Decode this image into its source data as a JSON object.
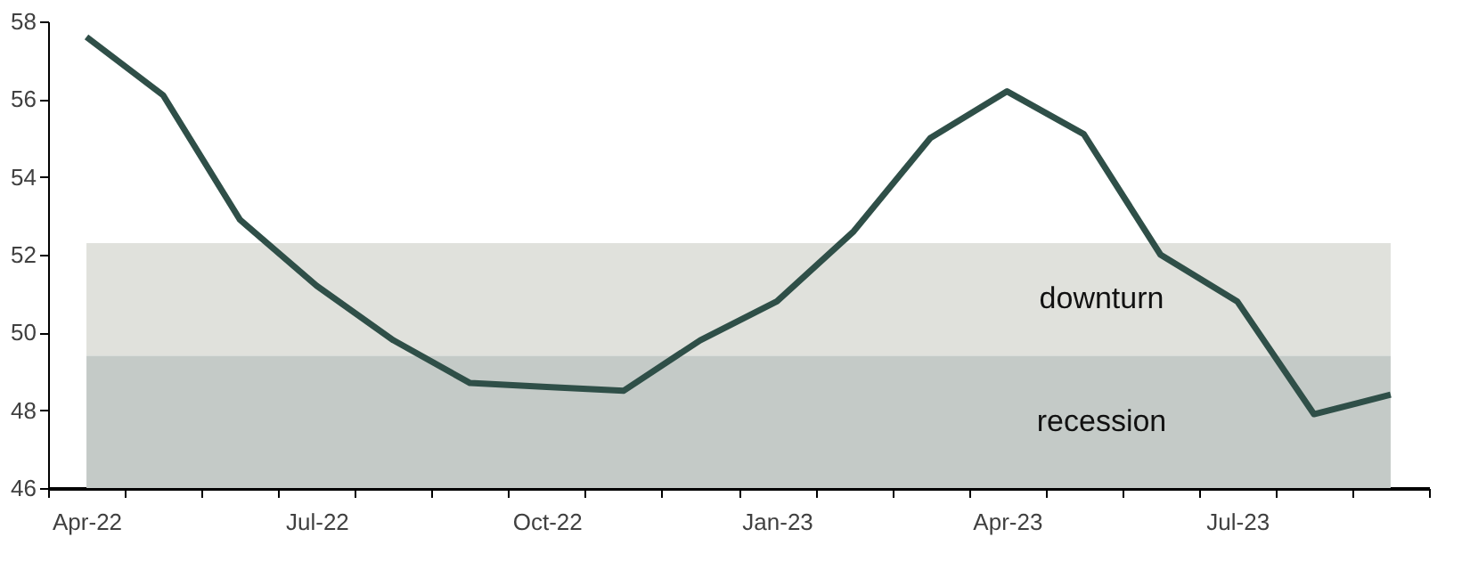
{
  "chart_data": {
    "type": "line",
    "categories": [
      "Apr-22",
      null,
      null,
      "Jul-22",
      null,
      null,
      "Oct-22",
      null,
      null,
      "Jan-23",
      null,
      null,
      "Apr-23",
      null,
      null,
      "Jul-23",
      null,
      null
    ],
    "series": [
      {
        "color": "#2f4f48",
        "values": [
          57.6,
          56.1,
          52.9,
          51.2,
          49.8,
          48.7,
          48.6,
          48.5,
          49.8,
          50.8,
          52.6,
          55.0,
          56.2,
          55.1,
          52.0,
          50.8,
          47.9,
          48.4
        ]
      }
    ],
    "ylim": [
      46,
      58
    ],
    "yticks": [
      46,
      48,
      50,
      52,
      54,
      56,
      58
    ],
    "grid": false,
    "marker": "none",
    "line_style": "solid",
    "bands": [
      {
        "axis": "y",
        "from": 49.4,
        "to": 52.3,
        "label": "downturn",
        "color": "#e0e1dc"
      },
      {
        "axis": "y",
        "from": 46,
        "to": 49.4,
        "label": "recession",
        "color": "#c4cac7"
      }
    ]
  }
}
